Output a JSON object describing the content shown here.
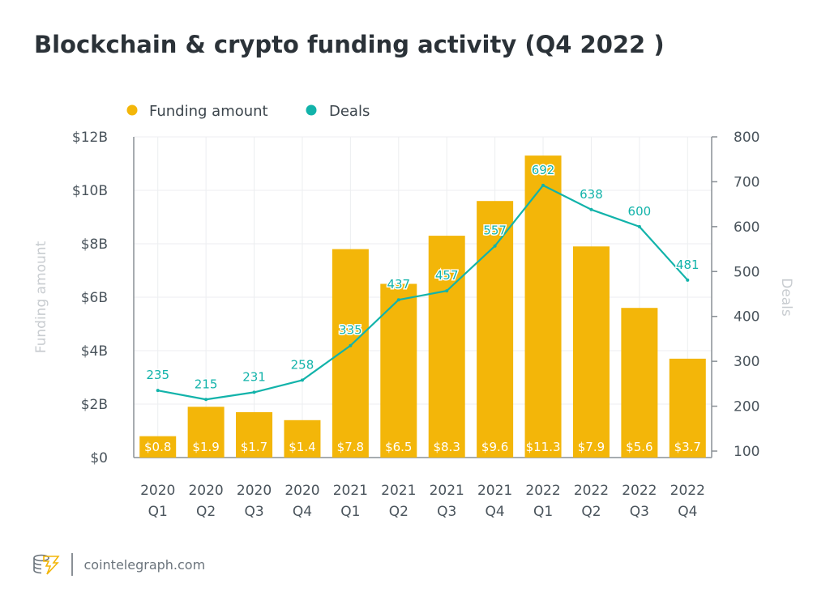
{
  "title": "Blockchain & crypto funding activity (Q4 2022 )",
  "colors": {
    "funding": "#f3b609",
    "deals": "#12b3aa",
    "grid": "#eceef0",
    "axis": "#8a9096"
  },
  "footer": {
    "site": "cointelegraph.com",
    "logo_icon": "coin-stack-lightning-icon"
  },
  "chart_data": {
    "type": "bar+line",
    "categories": [
      "2020 Q1",
      "2020 Q2",
      "2020 Q3",
      "2020 Q4",
      "2021 Q1",
      "2021 Q2",
      "2021 Q3",
      "2021 Q4",
      "2022 Q1",
      "2022 Q2",
      "2022 Q3",
      "2022 Q4"
    ],
    "category_lines": [
      [
        "2020",
        "Q1"
      ],
      [
        "2020",
        "Q2"
      ],
      [
        "2020",
        "Q3"
      ],
      [
        "2020",
        "Q4"
      ],
      [
        "2021",
        "Q1"
      ],
      [
        "2021",
        "Q2"
      ],
      [
        "2021",
        "Q3"
      ],
      [
        "2021",
        "Q4"
      ],
      [
        "2022",
        "Q1"
      ],
      [
        "2022",
        "Q2"
      ],
      [
        "2022",
        "Q3"
      ],
      [
        "2022",
        "Q4"
      ]
    ],
    "series": [
      {
        "name": "Funding amount",
        "type": "bar",
        "axis": "left",
        "values": [
          0.8,
          1.9,
          1.7,
          1.4,
          7.8,
          6.5,
          8.3,
          9.6,
          11.3,
          7.9,
          5.6,
          3.7
        ],
        "labels": [
          "$0.8",
          "$1.9",
          "$1.7",
          "$1.4",
          "$7.8",
          "$6.5",
          "$8.3",
          "$9.6",
          "$11.3",
          "$7.9",
          "$5.6",
          "$3.7"
        ]
      },
      {
        "name": "Deals",
        "type": "line",
        "axis": "right",
        "values": [
          235,
          215,
          231,
          258,
          335,
          437,
          457,
          557,
          692,
          638,
          600,
          481
        ]
      }
    ],
    "y_left": {
      "label": "Funding amount",
      "range": [
        0,
        12
      ],
      "ticks": [
        "$0",
        "$2B",
        "$4B",
        "$6B",
        "$8B",
        "$10B",
        "$12B"
      ]
    },
    "y_right": {
      "label": "Deals",
      "range": [
        100,
        800
      ],
      "ticks": [
        "100",
        "200",
        "300",
        "400",
        "500",
        "600",
        "700",
        "800"
      ]
    },
    "grid": true,
    "legend": "top-left"
  }
}
